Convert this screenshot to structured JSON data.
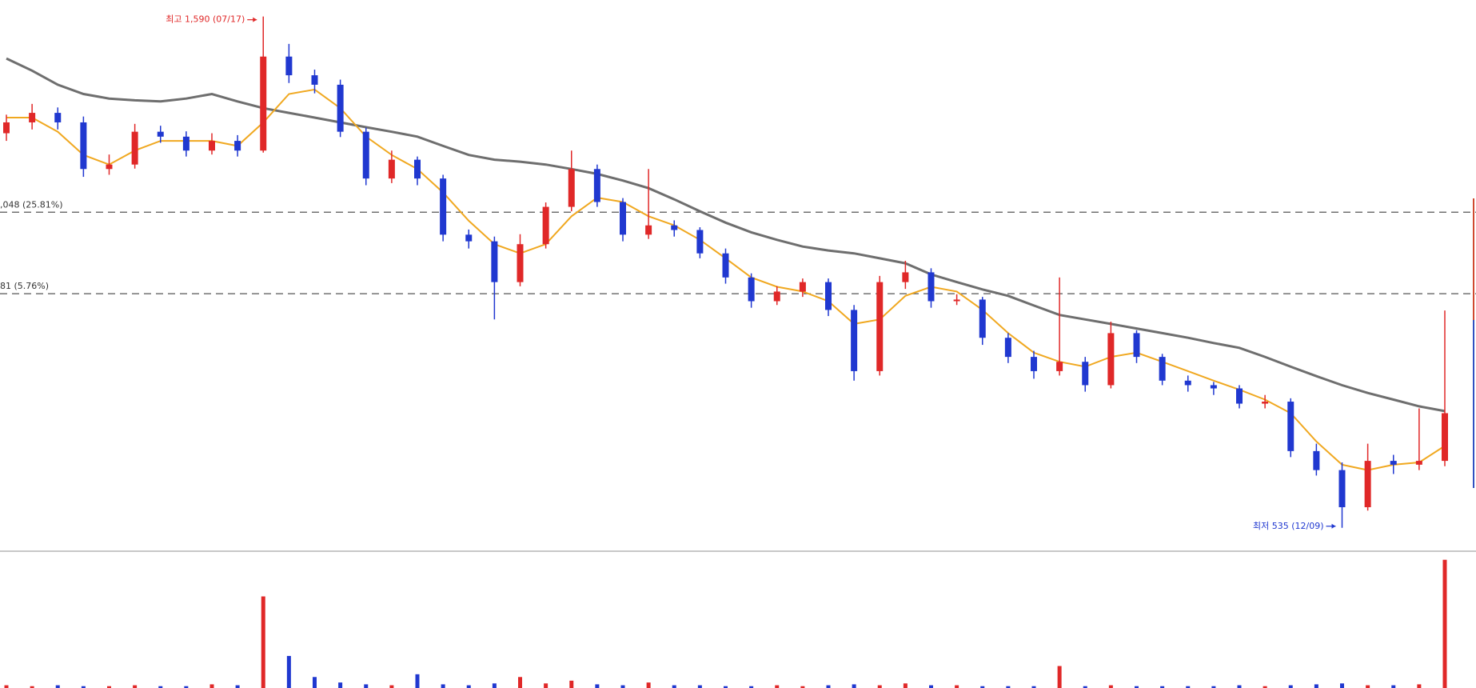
{
  "chart_data": {
    "type": "candlestick",
    "log_scale": true,
    "ylim": [
      509,
      1647
    ],
    "up_color": "#e02828",
    "down_color": "#2038d0",
    "open": [
      1240,
      1269,
      1295,
      1269,
      1149,
      1160,
      1244,
      1231,
      1195,
      1220,
      1195,
      1460,
      1403,
      1375,
      1244,
      1126,
      1172,
      1126,
      999,
      985,
      903,
      979,
      1060,
      1149,
      1071,
      999,
      1019,
      1009,
      960,
      912,
      867,
      885,
      903,
      851,
      747,
      903,
      922,
      867,
      870,
      802,
      770,
      747,
      762,
      725,
      810,
      770,
      732,
      725,
      720,
      697,
      700,
      630,
      605,
      559,
      617,
      612,
      617
    ],
    "high": [
      1290,
      1320,
      1310,
      1285,
      1185,
      1265,
      1260,
      1245,
      1240,
      1235,
      1590,
      1500,
      1420,
      1390,
      1255,
      1195,
      1180,
      1135,
      1010,
      995,
      1000,
      1070,
      1195,
      1160,
      1080,
      1149,
      1030,
      1015,
      970,
      920,
      895,
      910,
      910,
      860,
      915,
      945,
      930,
      880,
      875,
      810,
      780,
      912,
      770,
      830,
      815,
      775,
      740,
      730,
      725,
      710,
      705,
      640,
      615,
      640,
      625,
      690,
      850
    ],
    "low": [
      1220,
      1250,
      1250,
      1130,
      1135,
      1150,
      1215,
      1180,
      1185,
      1180,
      1190,
      1380,
      1350,
      1230,
      1110,
      1115,
      1110,
      985,
      970,
      834,
      895,
      970,
      1050,
      1060,
      985,
      990,
      995,
      950,
      900,
      855,
      860,
      875,
      840,
      732,
      740,
      890,
      855,
      860,
      790,
      760,
      735,
      740,
      715,
      720,
      760,
      725,
      715,
      710,
      690,
      690,
      622,
      598,
      535,
      555,
      600,
      605,
      610
    ],
    "close": [
      1269,
      1295,
      1269,
      1149,
      1160,
      1244,
      1231,
      1195,
      1220,
      1195,
      1460,
      1403,
      1375,
      1244,
      1126,
      1172,
      1126,
      999,
      985,
      903,
      979,
      1060,
      1149,
      1071,
      999,
      1019,
      1009,
      960,
      912,
      867,
      885,
      903,
      851,
      747,
      903,
      922,
      867,
      870,
      802,
      770,
      747,
      762,
      725,
      810,
      770,
      732,
      725,
      720,
      697,
      700,
      630,
      605,
      559,
      617,
      612,
      617,
      683
    ],
    "volume": [
      3,
      2,
      3,
      2,
      2,
      3,
      2,
      2,
      4,
      3,
      100,
      35,
      12,
      6,
      4,
      3,
      15,
      4,
      3,
      5,
      12,
      5,
      8,
      4,
      3,
      6,
      3,
      3,
      2,
      2,
      3,
      2,
      3,
      4,
      3,
      5,
      3,
      3,
      2,
      2,
      2,
      24,
      2,
      3,
      2,
      2,
      2,
      2,
      3,
      2,
      3,
      4,
      5,
      3,
      3,
      4,
      140
    ],
    "volume_lim": [
      0,
      145
    ],
    "moving_averages": [
      {
        "color": "#6e6e6e",
        "width": 3,
        "values": [
          1454,
          1417,
          1375,
          1348,
          1335,
          1330,
          1327,
          1335,
          1348,
          1327,
          1308,
          1295,
          1282,
          1269,
          1256,
          1244,
          1231,
          1207,
          1184,
          1172,
          1167,
          1160,
          1149,
          1137,
          1121,
          1103,
          1077,
          1050,
          1025,
          1004,
          988,
          974,
          966,
          960,
          950,
          940,
          918,
          903,
          889,
          877,
          859,
          842,
          834,
          826,
          818,
          810,
          802,
          793,
          785,
          770,
          754,
          739,
          725,
          713,
          703,
          693,
          686
        ]
      },
      {
        "color": "#f0a820",
        "width": 2,
        "values": [
          1282,
          1282,
          1244,
          1184,
          1160,
          1195,
          1220,
          1220,
          1220,
          1207,
          1269,
          1348,
          1361,
          1308,
          1231,
          1184,
          1149,
          1093,
          1029,
          979,
          960,
          979,
          1039,
          1081,
          1071,
          1039,
          1019,
          988,
          950,
          912,
          894,
          885,
          867,
          826,
          834,
          877,
          894,
          885,
          851,
          810,
          777,
          762,
          754,
          770,
          777,
          762,
          747,
          732,
          718,
          703,
          683,
          643,
          612,
          605,
          612,
          615,
          637
        ]
      }
    ],
    "levels": [
      {
        "value": 1048,
        "label": ",048 (25.81%)"
      },
      {
        "value": 881,
        "label": "81 (5.76%)"
      }
    ],
    "high_label": "최고 1,590 (07/17)",
    "low_label": "최저 535 (12/09)"
  }
}
